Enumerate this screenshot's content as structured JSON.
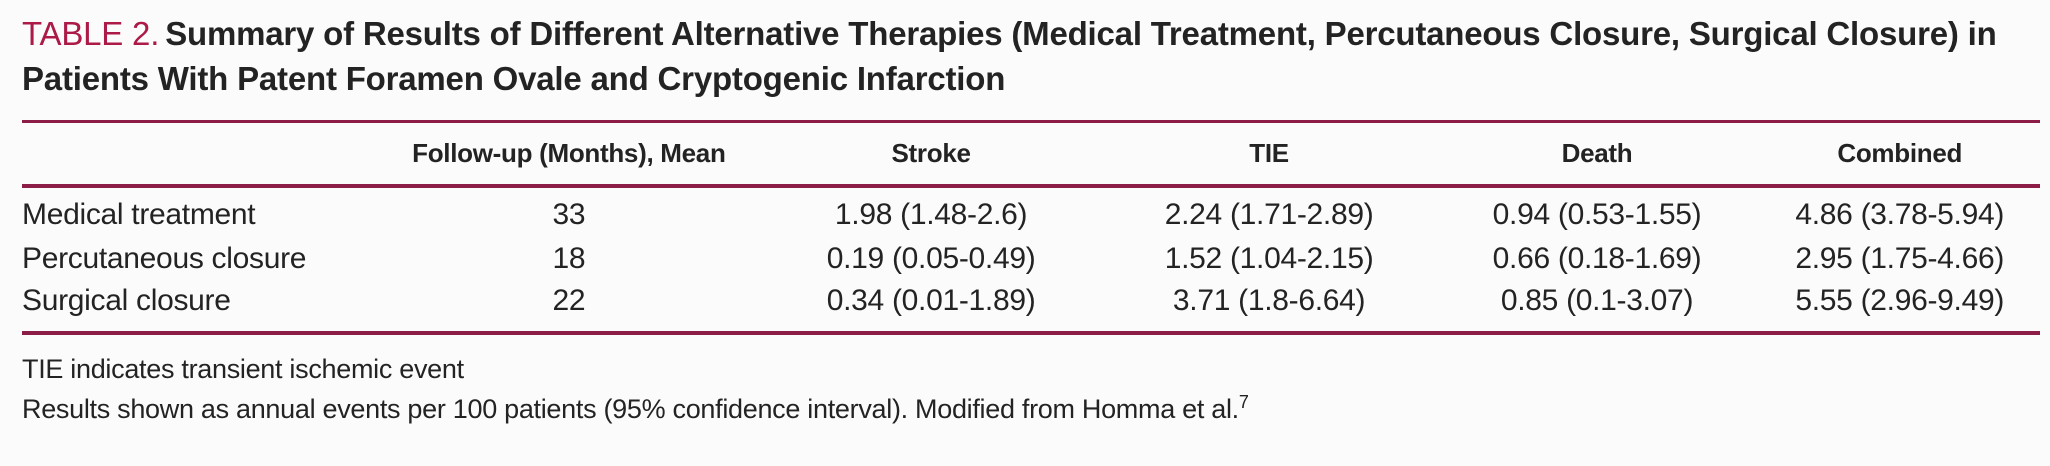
{
  "title": {
    "label": "TABLE 2.",
    "text": "Summary of Results of Different Alternative Therapies (Medical Treatment, Percutaneous Closure, Surgical Closure) in Patients With Patent Foramen Ovale and Cryptogenic Infarction"
  },
  "table": {
    "columns": [
      "",
      "Follow-up (Months), Mean",
      "Stroke",
      "TIE",
      "Death",
      "Combined"
    ],
    "rows": [
      {
        "label": "Medical treatment",
        "values": [
          "33",
          "1.98 (1.48-2.6)",
          "2.24 (1.71-2.89)",
          "0.94 (0.53-1.55)",
          "4.86 (3.78-5.94)"
        ]
      },
      {
        "label": "Percutaneous closure",
        "values": [
          "18",
          "0.19 (0.05-0.49)",
          "1.52 (1.04-2.15)",
          "0.66 (0.18-1.69)",
          "2.95 (1.75-4.66)"
        ]
      },
      {
        "label": "Surgical closure",
        "values": [
          "22",
          "0.34 (0.01-1.89)",
          "3.71 (1.8-6.64)",
          "0.85 (0.1-3.07)",
          "5.55 (2.96-9.49)"
        ]
      }
    ]
  },
  "footnotes": {
    "abbreviation": "TIE indicates transient ischemic event",
    "source": "Results shown as annual events per 100 patients (95% confidence interval). Modified from Homma et al.",
    "reference_number": "7"
  },
  "colors": {
    "accent_red": "#AC1A47",
    "rule_maroon": "#8B1D46",
    "text": "#232323",
    "background": "#FBFBFC"
  }
}
